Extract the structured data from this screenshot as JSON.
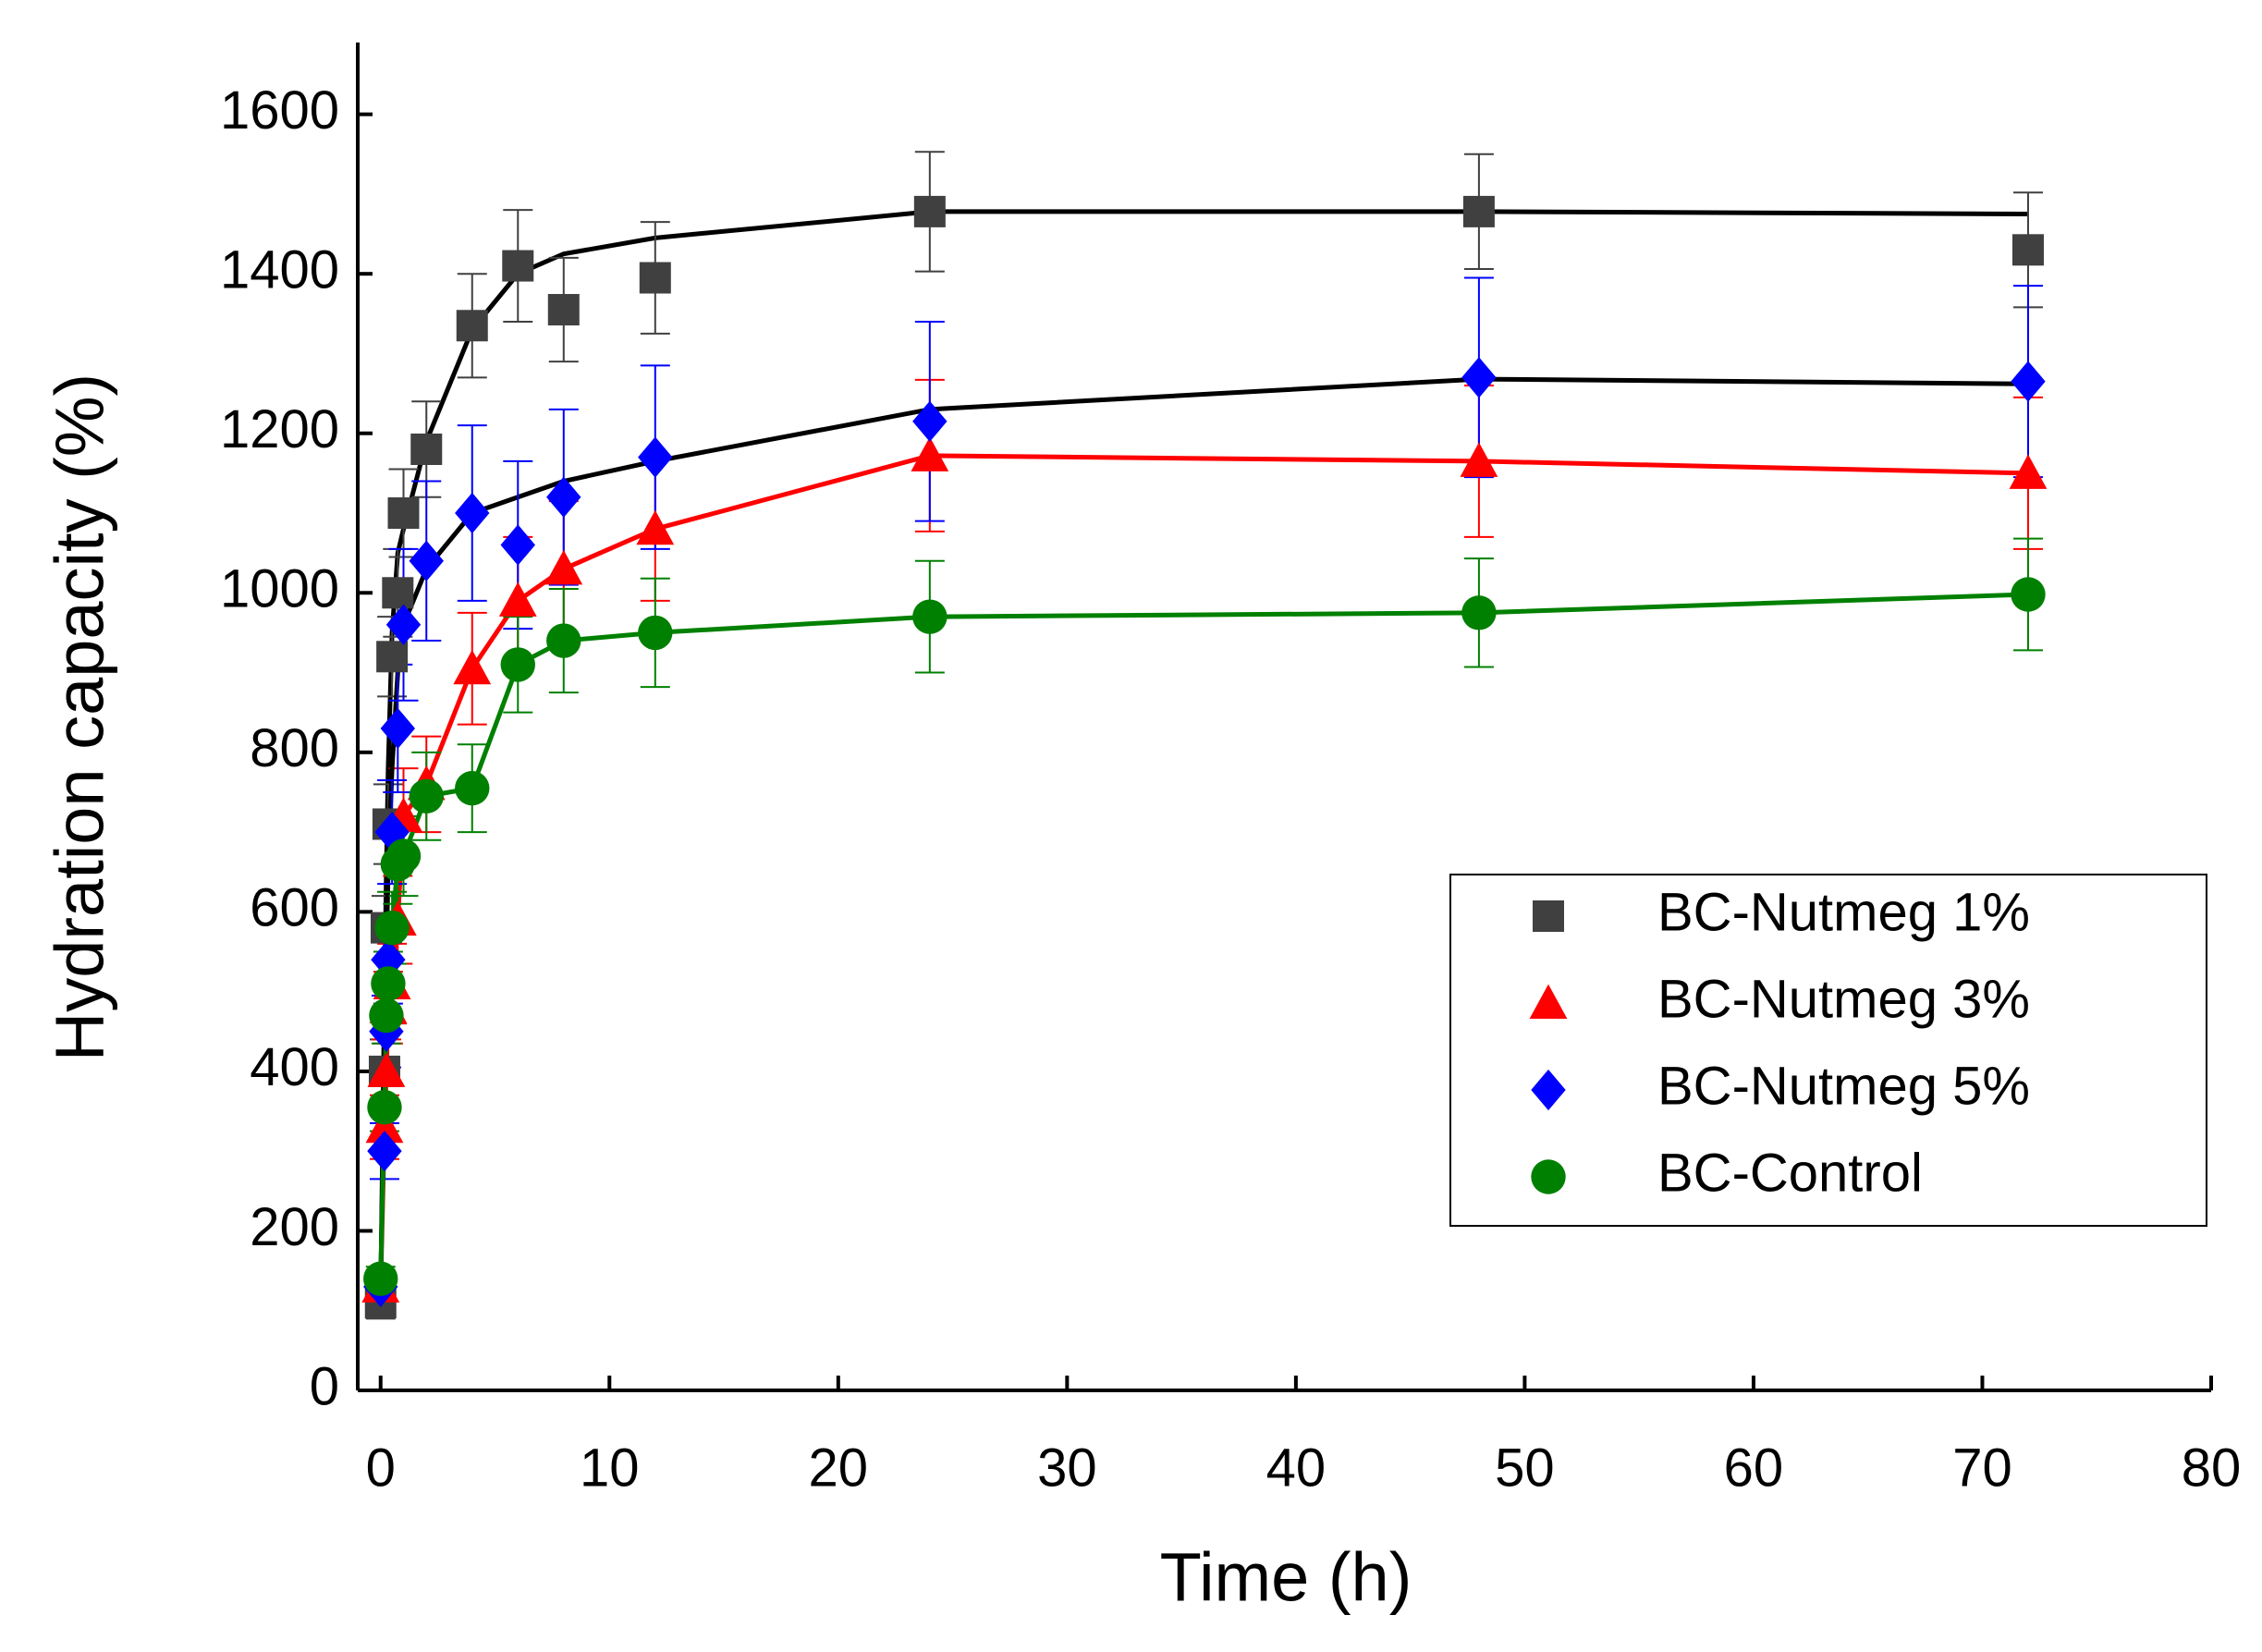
{
  "chart_data": {
    "type": "scatter",
    "x_label": "Time (h)",
    "y_label": "Hydration capacity (%)",
    "xlim": [
      -1,
      80
    ],
    "ylim": [
      0,
      1690
    ],
    "xticks": [
      0,
      10,
      20,
      30,
      40,
      50,
      60,
      70,
      80
    ],
    "yticks": [
      0,
      200,
      400,
      600,
      800,
      1000,
      1200,
      1400,
      1600
    ],
    "x": [
      0,
      0.17,
      0.25,
      0.33,
      0.5,
      0.75,
      1,
      2,
      4,
      6,
      8,
      12,
      24,
      48,
      72
    ],
    "legend": "center right",
    "series": [
      {
        "name": "BC-Nutmeg 1%",
        "color": "#404040",
        "marker": "square",
        "line_color": "#000000",
        "values": [
          110,
          400,
          580,
          710,
          920,
          1000,
          1100,
          1180,
          1335,
          1410,
          1355,
          1395,
          1478,
          1478,
          1430
        ],
        "errors": [
          20,
          40,
          40,
          50,
          50,
          55,
          55,
          60,
          65,
          70,
          65,
          70,
          75,
          72,
          72
        ],
        "fit": [
          110,
          500,
          650,
          780,
          950,
          1050,
          1080,
          1190,
          1330,
          1400,
          1425,
          1445,
          1478,
          1478,
          1475
        ]
      },
      {
        "name": "BC-Nutmeg 3%",
        "color": "#ff0000",
        "marker": "triangle",
        "line_color": "#ff0000",
        "values": [
          130,
          330,
          400,
          480,
          510,
          590,
          720,
          760,
          905,
          990,
          1030,
          1080,
          1172,
          1165,
          1150
        ],
        "errors": [
          20,
          40,
          40,
          45,
          50,
          55,
          60,
          60,
          70,
          80,
          85,
          90,
          95,
          95,
          95
        ]
      },
      {
        "name": "BC-Nutmeg 5%",
        "color": "#0000ff",
        "marker": "diamond",
        "line_color": "#000000",
        "values": [
          130,
          300,
          450,
          540,
          700,
          830,
          960,
          1040,
          1100,
          1060,
          1120,
          1170,
          1215,
          1270,
          1265
        ],
        "errors": [
          20,
          35,
          45,
          55,
          65,
          80,
          95,
          100,
          110,
          105,
          110,
          115,
          125,
          125,
          120
        ],
        "fit": [
          130,
          400,
          550,
          650,
          780,
          900,
          960,
          1030,
          1100,
          1120,
          1140,
          1165,
          1230,
          1268,
          1262
        ]
      },
      {
        "name": "BC-Control",
        "color": "#008000",
        "marker": "circle",
        "line_color": "#008000",
        "values": [
          140,
          355,
          470,
          510,
          580,
          660,
          670,
          745,
          755,
          910,
          940,
          950,
          970,
          975,
          998
        ],
        "errors": [
          15,
          30,
          35,
          40,
          45,
          50,
          50,
          55,
          55,
          60,
          65,
          68,
          70,
          68,
          70
        ]
      }
    ]
  }
}
